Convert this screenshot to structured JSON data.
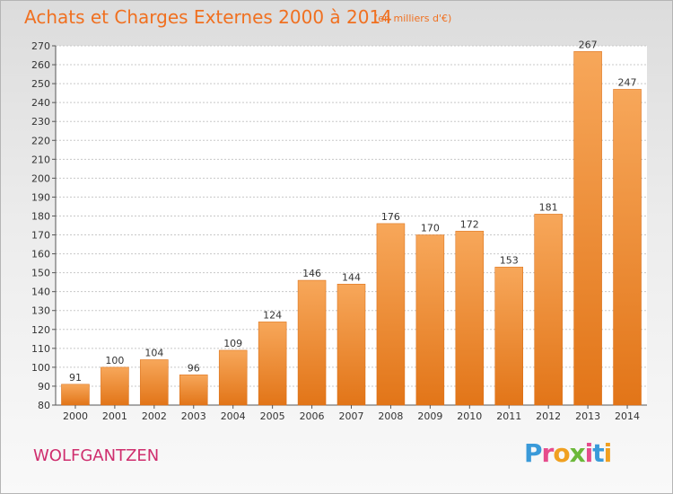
{
  "chart_data": {
    "type": "bar",
    "title": "Achats et Charges Externes 2000 à 2014",
    "subtitle": "(en milliers d'€)",
    "categories": [
      "2000",
      "2001",
      "2002",
      "2003",
      "2004",
      "2005",
      "2006",
      "2007",
      "2008",
      "2009",
      "2010",
      "2011",
      "2012",
      "2013",
      "2014"
    ],
    "values": [
      91,
      100,
      104,
      96,
      109,
      124,
      146,
      144,
      176,
      170,
      172,
      153,
      181,
      267,
      247
    ],
    "ylim": [
      80,
      270
    ],
    "yticks": [
      80,
      90,
      100,
      110,
      120,
      130,
      140,
      150,
      160,
      170,
      180,
      190,
      200,
      210,
      220,
      230,
      240,
      250,
      260,
      270
    ],
    "grid": true,
    "bar_color": "#f0873a"
  },
  "footer": {
    "commune": "WOLFGANTZEN",
    "logo": "Proxiti",
    "logo_colors": [
      "#3a9ad9",
      "#e64c8c",
      "#f0a020",
      "#6cb83a",
      "#e64c8c",
      "#3a9ad9",
      "#f0a020"
    ]
  }
}
